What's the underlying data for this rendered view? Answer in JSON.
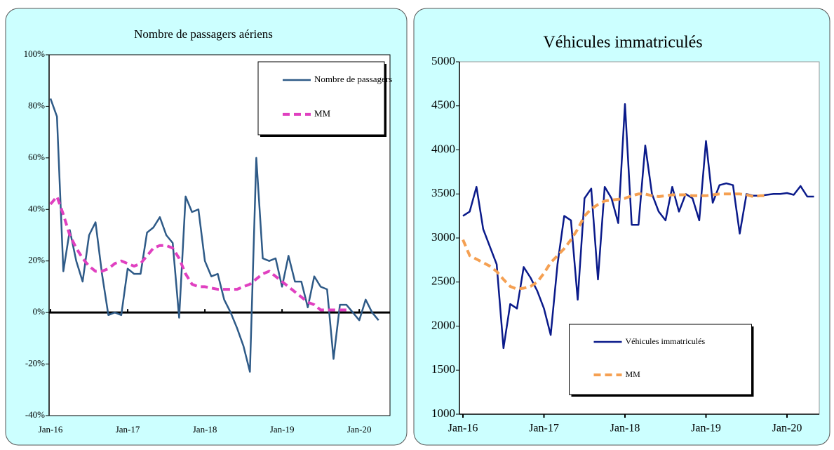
{
  "chart_data": [
    {
      "type": "line",
      "title": "Nombre de passagers aériens",
      "categories": [
        "Jan-16",
        null,
        null,
        null,
        null,
        null,
        null,
        null,
        null,
        null,
        null,
        null,
        "Jan-17",
        null,
        null,
        null,
        null,
        null,
        null,
        null,
        null,
        null,
        null,
        null,
        "Jan-18",
        null,
        null,
        null,
        null,
        null,
        null,
        null,
        null,
        null,
        null,
        null,
        "Jan-19",
        null,
        null,
        null,
        null,
        null,
        null,
        null,
        null,
        null,
        null,
        null,
        "Jan-20",
        null,
        null,
        null
      ],
      "series": [
        {
          "name": "Nombre de passagers",
          "color": "#2e5a87",
          "values": [
            83,
            76,
            16,
            32,
            20,
            12,
            30,
            35,
            15,
            -1,
            0,
            -1,
            17,
            15,
            15,
            31,
            33,
            37,
            30,
            27,
            -2,
            45,
            39,
            40,
            20,
            14,
            15,
            5,
            0,
            -6,
            -13,
            -23,
            60,
            21,
            20,
            21,
            10,
            22,
            12,
            12,
            2,
            14,
            10,
            9,
            -18,
            3,
            3,
            0,
            -3,
            5,
            0,
            -3
          ]
        },
        {
          "name": "MM",
          "color": "#e040c0",
          "dashed": true,
          "values": [
            42,
            45,
            38,
            30,
            25,
            21,
            18,
            16,
            16,
            17,
            19,
            20,
            19,
            18,
            19,
            22,
            25,
            26,
            26,
            25,
            21,
            15,
            11,
            10,
            10,
            9.5,
            9,
            9,
            9,
            9,
            10,
            11,
            13,
            15,
            16,
            14,
            12,
            10,
            8,
            6,
            4,
            3,
            1,
            1,
            1,
            1,
            1,
            null,
            null,
            null,
            null,
            null
          ]
        }
      ],
      "ylim": [
        -40,
        100
      ],
      "yticks": [
        {
          "value": -40,
          "label": "-40%"
        },
        {
          "value": -20,
          "label": "-20%"
        },
        {
          "value": 0,
          "label": "0%"
        },
        {
          "value": 20,
          "label": "20%"
        },
        {
          "value": 40,
          "label": "40%"
        },
        {
          "value": 60,
          "label": "60%"
        },
        {
          "value": 80,
          "label": "80%"
        },
        {
          "value": 100,
          "label": "100%"
        }
      ],
      "legend": "upper right"
    },
    {
      "type": "line",
      "title": "Véhicules immatriculés",
      "categories": [
        "Jan-16",
        null,
        null,
        null,
        null,
        null,
        null,
        null,
        null,
        null,
        null,
        null,
        "Jan-17",
        null,
        null,
        null,
        null,
        null,
        null,
        null,
        null,
        null,
        null,
        null,
        "Jan-18",
        null,
        null,
        null,
        null,
        null,
        null,
        null,
        null,
        null,
        null,
        null,
        "Jan-19",
        null,
        null,
        null,
        null,
        null,
        null,
        null,
        null,
        null,
        null,
        null,
        "Jan-20",
        null,
        null,
        null,
        null
      ],
      "series": [
        {
          "name": "Véhicules immatriculés",
          "color": "#0a1a8a",
          "values": [
            3250,
            3300,
            3580,
            3100,
            2900,
            2700,
            1750,
            2250,
            2200,
            2670,
            2550,
            2400,
            2200,
            1900,
            2700,
            3250,
            3200,
            2300,
            3450,
            3560,
            2530,
            3580,
            3450,
            3170,
            4520,
            3150,
            3150,
            4050,
            3500,
            3300,
            3200,
            3580,
            3300,
            3500,
            3450,
            3200,
            4100,
            3400,
            3600,
            3620,
            3600,
            3050,
            3500,
            3480,
            3480,
            3490,
            3500,
            3500,
            3510,
            3490,
            3590,
            3470,
            3470
          ]
        },
        {
          "name": "MM",
          "color": "#f5a052",
          "dashed": true,
          "values": [
            2980,
            2800,
            2760,
            2720,
            2680,
            2620,
            2530,
            2450,
            2420,
            2430,
            2450,
            2500,
            2600,
            2720,
            2800,
            2880,
            2980,
            3100,
            3250,
            3330,
            3380,
            3420,
            3430,
            3440,
            3450,
            3480,
            3500,
            3500,
            3480,
            3470,
            3480,
            3490,
            3490,
            3490,
            3480,
            3480,
            3480,
            3490,
            3500,
            3500,
            3500,
            3500,
            3490,
            3470,
            3480,
            3480,
            null,
            null,
            null,
            null,
            null,
            null,
            null
          ]
        }
      ],
      "ylim": [
        1000,
        5000
      ],
      "yticks": [
        1000,
        1500,
        2000,
        2500,
        3000,
        3500,
        4000,
        4500,
        5000
      ],
      "legend": "lower center"
    }
  ]
}
